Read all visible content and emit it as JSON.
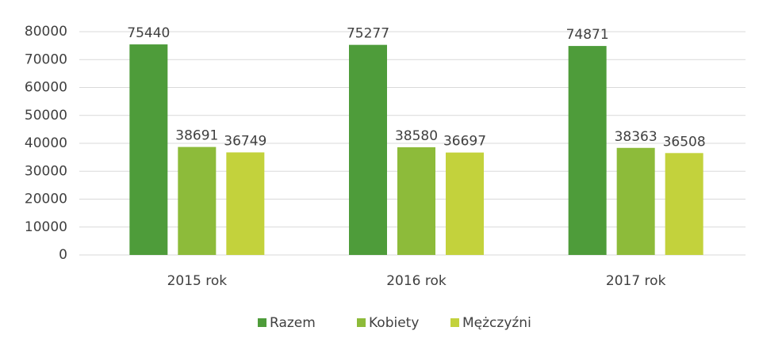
{
  "chart_data": {
    "type": "bar",
    "categories": [
      "2015 rok",
      "2016 rok",
      "2017 rok"
    ],
    "series": [
      {
        "name": "Razem",
        "color": "#4e9c3a",
        "values": [
          75440,
          75277,
          74871
        ]
      },
      {
        "name": "Kobiety",
        "color": "#8dbb3a",
        "values": [
          38691,
          38580,
          38363
        ]
      },
      {
        "name": "Mężczyźni",
        "color": "#c3d23c",
        "values": [
          36749,
          36697,
          36508
        ]
      }
    ],
    "ylim": [
      0,
      80000
    ],
    "yticks": [
      0,
      10000,
      20000,
      30000,
      40000,
      50000,
      60000,
      70000,
      80000
    ],
    "grid": true,
    "legend": "bottom"
  }
}
